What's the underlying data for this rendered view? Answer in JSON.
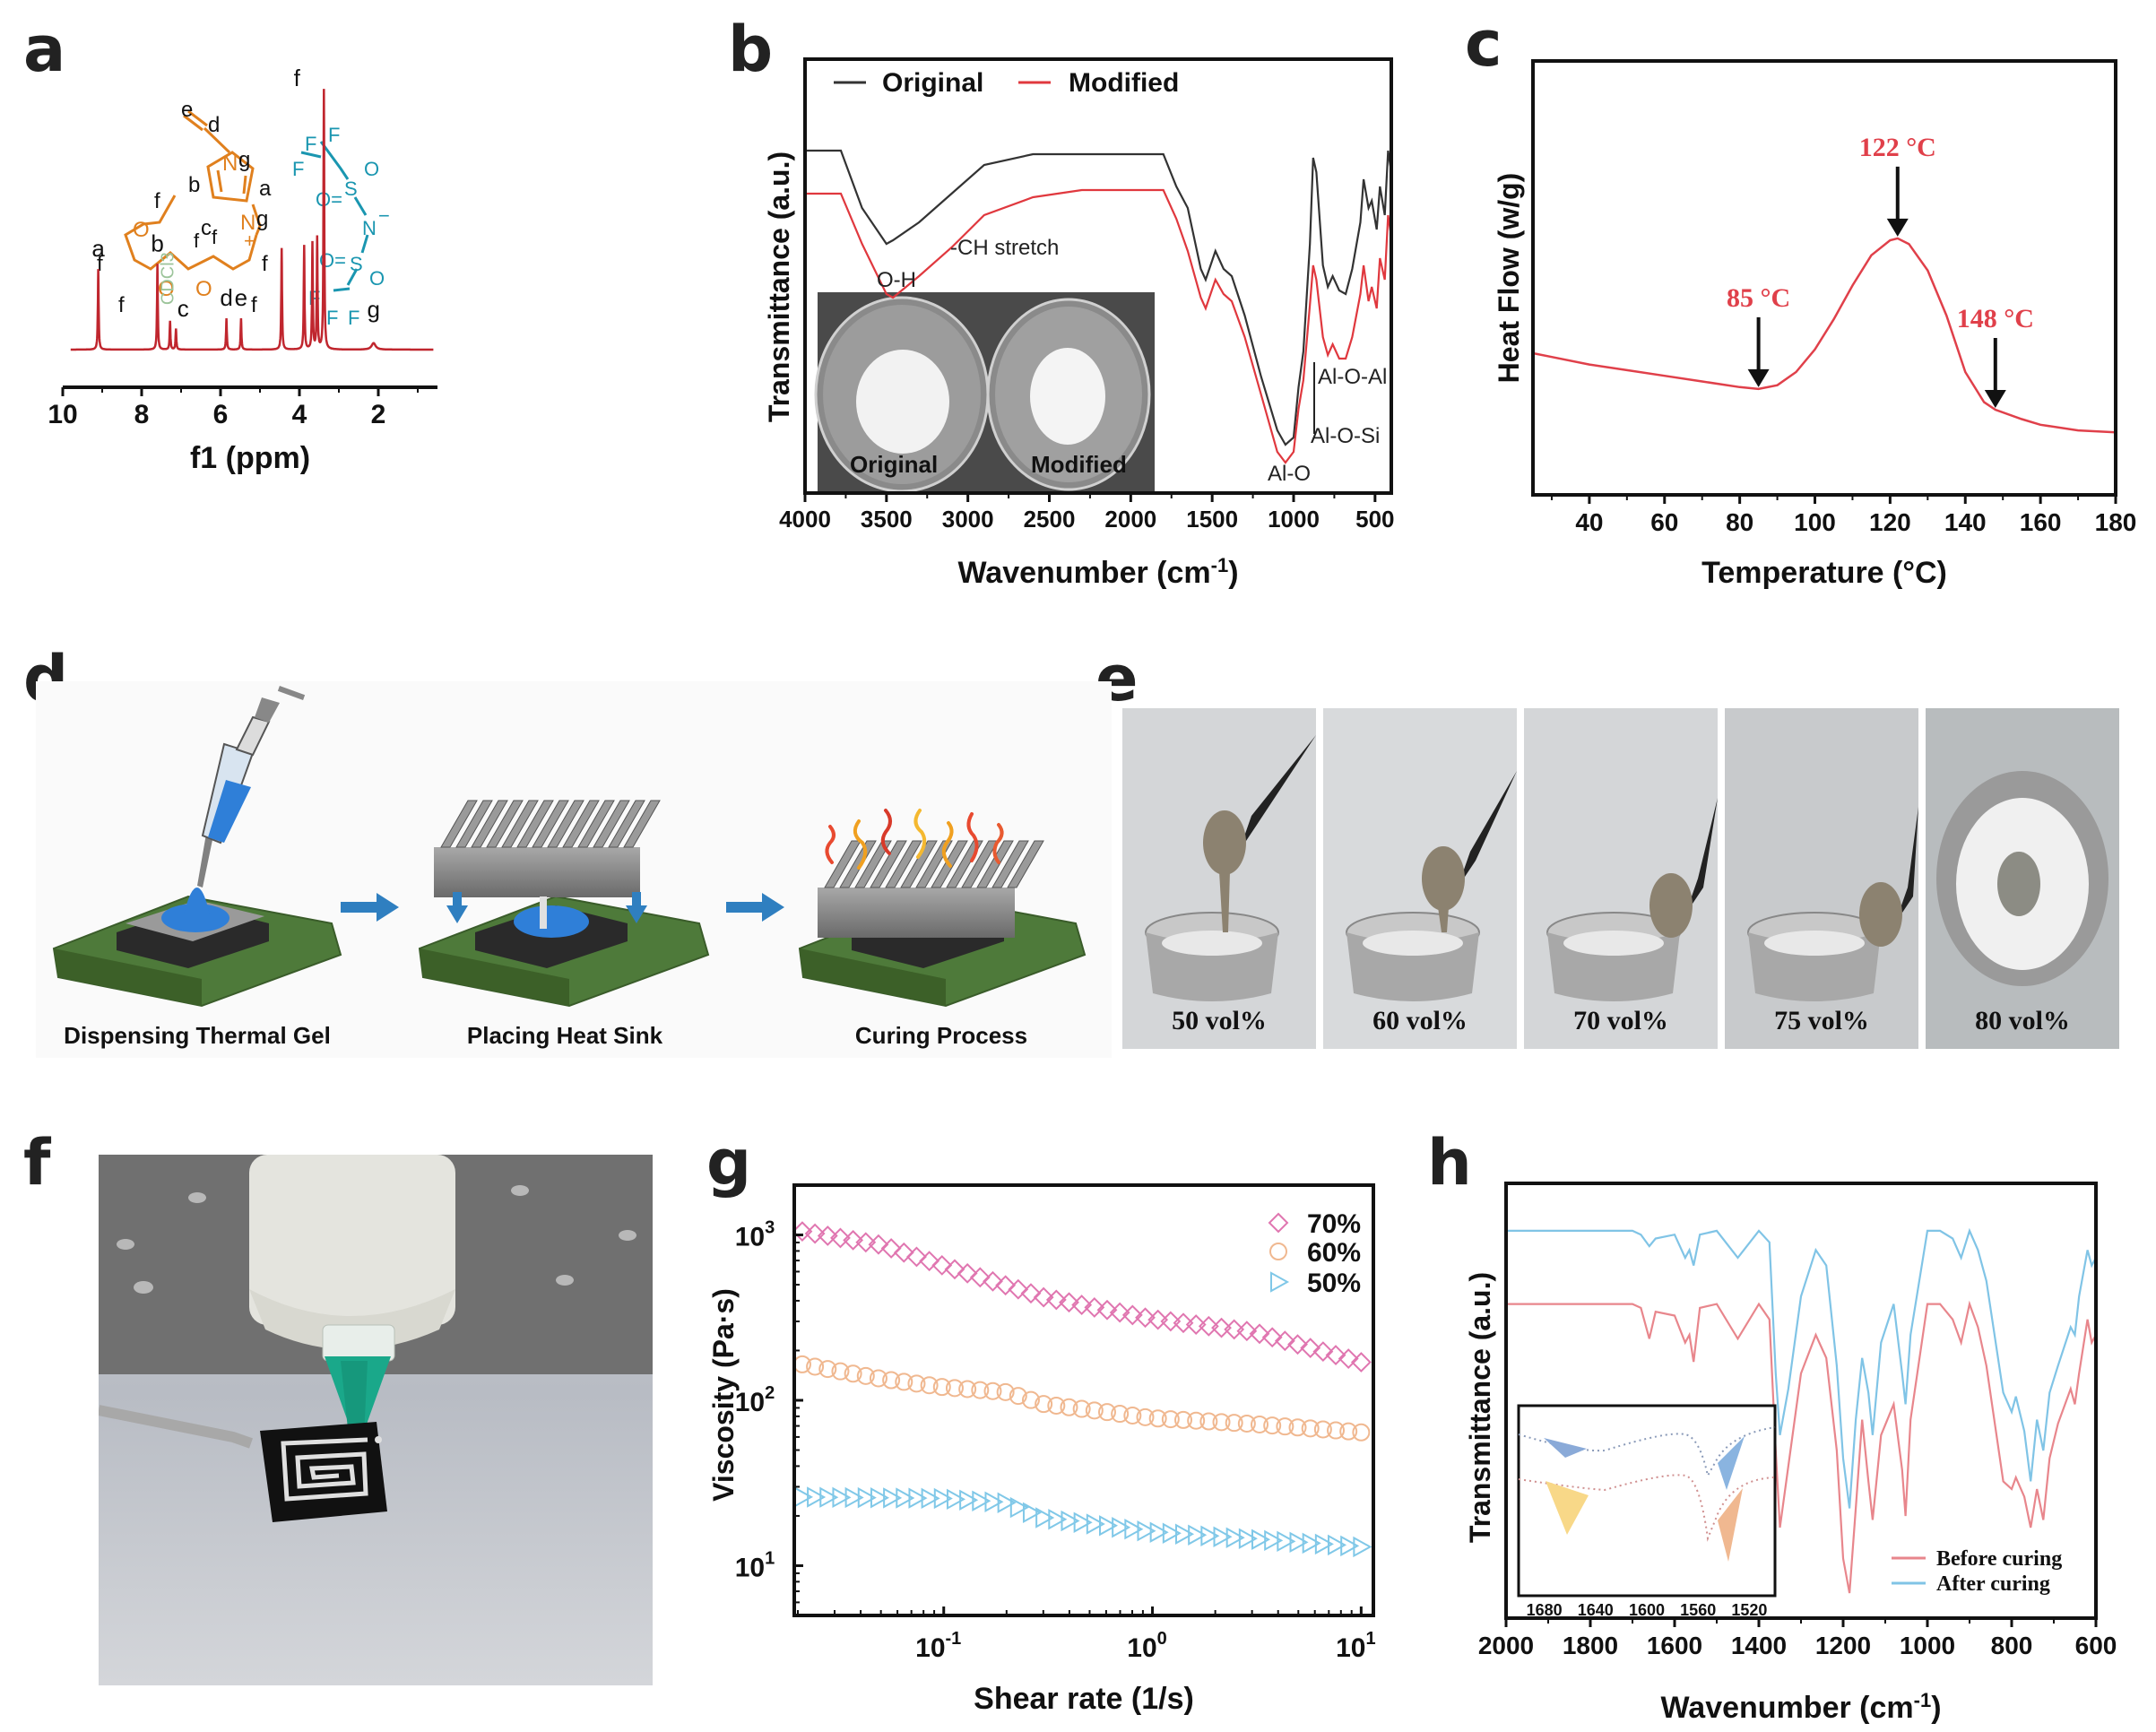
{
  "panels": {
    "a": "a",
    "b": "b",
    "c": "c",
    "d": "d",
    "e": "e",
    "f": "f",
    "g": "g",
    "h": "h"
  },
  "chart_data": [
    {
      "id": "a",
      "type": "line",
      "title": "",
      "xlabel": "f1 (ppm)",
      "ylabel": "",
      "xlim": [
        10,
        0.5
      ],
      "x_reversed": true,
      "xticks": [
        "10",
        "8",
        "6",
        "4",
        "2"
      ],
      "xtick_values": [
        10,
        8,
        6,
        4,
        2
      ],
      "color": "#c0262e",
      "peaks": [
        {
          "ppm": 9.1,
          "height": 0.31,
          "label": "a"
        },
        {
          "ppm": 7.6,
          "height": 0.33,
          "label": "b"
        },
        {
          "ppm": 7.28,
          "height": 0.11,
          "label": "CDCl3",
          "label_color": "#9cc49a"
        },
        {
          "ppm": 7.13,
          "height": 0.08,
          "label": "c"
        },
        {
          "ppm": 5.85,
          "height": 0.12,
          "label": "d"
        },
        {
          "ppm": 5.48,
          "height": 0.12,
          "label": "e"
        },
        {
          "ppm": 4.45,
          "height": 0.39,
          "label": ""
        },
        {
          "ppm": 3.88,
          "height": 0.4,
          "label": ""
        },
        {
          "ppm": 3.67,
          "height": 0.41,
          "label": ""
        },
        {
          "ppm": 3.55,
          "height": 0.43,
          "label": ""
        },
        {
          "ppm": 3.38,
          "height": 1.0,
          "label": "f"
        },
        {
          "ppm": 2.12,
          "height": 0.025,
          "label": "g"
        }
      ],
      "structure": {
        "cation_color": "#e0801e",
        "anion_color": "#1a96b0",
        "cation_atoms": [
          "N",
          "N",
          "O",
          "O",
          "O"
        ],
        "cation_charge": "+",
        "proton_labels": [
          "a",
          "b",
          "c",
          "d",
          "e",
          "f",
          "g"
        ],
        "anion_atoms": [
          "F",
          "S",
          "O",
          "N",
          "S",
          "O"
        ],
        "anion_charge": "−"
      }
    },
    {
      "id": "b",
      "type": "line",
      "title": "",
      "xlabel": "Wavenumber (cm",
      "xlabel_sup": "-1",
      "xlabel_tail": ")",
      "ylabel": "Transmittance (a.u.)",
      "xlim": [
        4000,
        400
      ],
      "x_reversed": true,
      "xticks": [
        "4000",
        "3500",
        "3000",
        "2500",
        "2000",
        "1500",
        "1000",
        "500"
      ],
      "xtick_values": [
        4000,
        3500,
        3000,
        2500,
        2000,
        1500,
        1000,
        500
      ],
      "legend": {
        "position": "top-left",
        "entries": [
          "Original",
          "Modified"
        ]
      },
      "series": [
        {
          "name": "Original",
          "color": "#333333",
          "x": [
            4000,
            3780,
            3650,
            3500,
            3460,
            3300,
            3100,
            2900,
            2600,
            2300,
            2000,
            1800,
            1720,
            1650,
            1570,
            1540,
            1480,
            1430,
            1380,
            1300,
            1200,
            1100,
            1050,
            1000,
            970,
            940,
            900,
            880,
            860,
            820,
            790,
            760,
            720,
            680,
            640,
            590,
            570,
            540,
            520,
            490,
            470,
            440,
            420,
            400
          ],
          "y": [
            0.88,
            0.88,
            0.72,
            0.62,
            0.63,
            0.68,
            0.76,
            0.84,
            0.87,
            0.87,
            0.87,
            0.87,
            0.78,
            0.72,
            0.55,
            0.52,
            0.6,
            0.55,
            0.53,
            0.42,
            0.25,
            0.1,
            0.06,
            0.08,
            0.22,
            0.32,
            0.62,
            0.86,
            0.82,
            0.56,
            0.5,
            0.53,
            0.49,
            0.48,
            0.55,
            0.68,
            0.8,
            0.72,
            0.74,
            0.66,
            0.78,
            0.7,
            0.88,
            0.82
          ]
        },
        {
          "name": "Modified",
          "color": "#e0383e",
          "x": [
            4000,
            3780,
            3650,
            3500,
            3460,
            3300,
            3100,
            2900,
            2600,
            2300,
            2000,
            1800,
            1720,
            1650,
            1570,
            1540,
            1480,
            1430,
            1380,
            1300,
            1200,
            1100,
            1050,
            1000,
            970,
            940,
            900,
            880,
            860,
            820,
            790,
            760,
            720,
            680,
            640,
            590,
            570,
            540,
            520,
            490,
            470,
            440,
            420,
            400
          ],
          "y": [
            0.76,
            0.76,
            0.62,
            0.48,
            0.47,
            0.53,
            0.61,
            0.7,
            0.75,
            0.77,
            0.77,
            0.77,
            0.69,
            0.6,
            0.47,
            0.44,
            0.52,
            0.48,
            0.46,
            0.36,
            0.2,
            0.04,
            0.01,
            0.04,
            0.16,
            0.24,
            0.45,
            0.56,
            0.52,
            0.36,
            0.31,
            0.34,
            0.3,
            0.3,
            0.36,
            0.48,
            0.56,
            0.46,
            0.5,
            0.44,
            0.58,
            0.52,
            0.7,
            0.64
          ]
        }
      ],
      "annotations": [
        "O-H",
        "-CH stretch",
        "Al-O",
        "Al-O-Si",
        "Al-O-Al"
      ],
      "inset_labels": [
        "Original",
        "Modified"
      ]
    },
    {
      "id": "c",
      "type": "line",
      "title": "",
      "xlabel": "Temperature (°C)",
      "ylabel": "Heat Flow (w/g)",
      "xlim": [
        25,
        180
      ],
      "xticks": [
        "40",
        "60",
        "80",
        "100",
        "120",
        "140",
        "160",
        "180"
      ],
      "xtick_values": [
        40,
        60,
        80,
        100,
        120,
        140,
        160,
        180
      ],
      "color": "#e0404a",
      "x": [
        25,
        30,
        40,
        50,
        60,
        70,
        80,
        85,
        90,
        95,
        100,
        105,
        110,
        115,
        120,
        122,
        125,
        130,
        135,
        140,
        145,
        148,
        155,
        160,
        170,
        180
      ],
      "y": [
        0.3,
        0.29,
        0.27,
        0.255,
        0.24,
        0.225,
        0.21,
        0.205,
        0.215,
        0.25,
        0.31,
        0.39,
        0.48,
        0.56,
        0.6,
        0.605,
        0.59,
        0.52,
        0.4,
        0.25,
        0.17,
        0.15,
        0.125,
        0.11,
        0.095,
        0.09
      ],
      "annotations": [
        {
          "x": 85,
          "label": "85 °C"
        },
        {
          "x": 122,
          "label": "122 °C"
        },
        {
          "x": 148,
          "label": "148 °C"
        }
      ]
    },
    {
      "id": "g",
      "type": "scatter",
      "title": "",
      "xlabel": "Shear rate (1/s)",
      "ylabel": "Viscosity (Pa·s)",
      "xscale": "log",
      "yscale": "log",
      "xlim": [
        0.02,
        11
      ],
      "ylim": [
        5,
        2000
      ],
      "xticks": [
        "10",
        "10",
        "10"
      ],
      "xtick_exps": [
        "-1",
        "0",
        "1"
      ],
      "xtick_values": [
        0.1,
        1,
        10
      ],
      "yticks": [
        "10",
        "10",
        "10"
      ],
      "ytick_exps": [
        "1",
        "2",
        "3"
      ],
      "ytick_values": [
        10,
        100,
        1000
      ],
      "legend": {
        "position": "top-right",
        "entries": [
          "70%",
          "60%",
          "50%"
        ]
      },
      "series": [
        {
          "name": "70%",
          "marker": "diamond",
          "color": "#e076b0",
          "x_start": 0.021,
          "x_end": 10,
          "n": 45,
          "anchors": [
            [
              0.021,
              1050
            ],
            [
              0.05,
              870
            ],
            [
              0.1,
              650
            ],
            [
              0.3,
              420
            ],
            [
              1,
              310
            ],
            [
              3,
              260
            ],
            [
              10,
              170
            ]
          ]
        },
        {
          "name": "60%",
          "marker": "circle",
          "color": "#f0b890",
          "x_start": 0.021,
          "x_end": 10,
          "n": 45,
          "anchors": [
            [
              0.021,
              165
            ],
            [
              0.05,
              135
            ],
            [
              0.1,
              120
            ],
            [
              0.2,
              112
            ],
            [
              0.3,
              95
            ],
            [
              0.6,
              85
            ],
            [
              1,
              78
            ],
            [
              3,
              72
            ],
            [
              10,
              64
            ]
          ]
        },
        {
          "name": "50%",
          "marker": "triangle-right",
          "color": "#80c8e8",
          "x_start": 0.021,
          "x_end": 10,
          "n": 45,
          "anchors": [
            [
              0.021,
              26
            ],
            [
              0.1,
              25.5
            ],
            [
              0.2,
              24
            ],
            [
              0.3,
              19.5
            ],
            [
              0.6,
              17.5
            ],
            [
              1,
              16
            ],
            [
              3,
              14.5
            ],
            [
              10,
              13
            ]
          ]
        }
      ]
    },
    {
      "id": "h",
      "type": "line",
      "title": "",
      "xlabel": "Wavenumber (cm",
      "xlabel_sup": "-1",
      "xlabel_tail": ")",
      "ylabel": "Transmittance (a.u.)",
      "xlim": [
        2000,
        600
      ],
      "x_reversed": true,
      "xticks": [
        "2000",
        "1800",
        "1600",
        "1400",
        "1200",
        "1000",
        "800",
        "600"
      ],
      "xtick_values": [
        2000,
        1800,
        1600,
        1400,
        1200,
        1000,
        800,
        600
      ],
      "legend": {
        "position": "bottom-right",
        "entries": [
          "Before curing",
          "After curing"
        ]
      },
      "series": [
        {
          "name": "Before curing",
          "color": "#e8868c",
          "x": [
            2000,
            1900,
            1800,
            1700,
            1680,
            1660,
            1645,
            1600,
            1575,
            1565,
            1555,
            1540,
            1500,
            1450,
            1400,
            1375,
            1360,
            1350,
            1330,
            1300,
            1265,
            1240,
            1215,
            1200,
            1185,
            1170,
            1155,
            1140,
            1130,
            1110,
            1080,
            1060,
            1052,
            1040,
            1000,
            970,
            940,
            920,
            900,
            880,
            860,
            820,
            800,
            790,
            770,
            755,
            740,
            725,
            710,
            690,
            660,
            650,
            640,
            620,
            610,
            600
          ],
          "y": [
            0.78,
            0.78,
            0.78,
            0.78,
            0.77,
            0.69,
            0.76,
            0.75,
            0.68,
            0.7,
            0.63,
            0.77,
            0.78,
            0.69,
            0.78,
            0.74,
            0.4,
            0.2,
            0.36,
            0.6,
            0.7,
            0.64,
            0.4,
            0.12,
            0.03,
            0.25,
            0.48,
            0.32,
            0.22,
            0.44,
            0.52,
            0.35,
            0.23,
            0.48,
            0.78,
            0.78,
            0.74,
            0.68,
            0.78,
            0.72,
            0.62,
            0.32,
            0.3,
            0.33,
            0.28,
            0.2,
            0.3,
            0.22,
            0.38,
            0.47,
            0.56,
            0.52,
            0.6,
            0.74,
            0.68,
            0.7
          ]
        },
        {
          "name": "After curing",
          "color": "#80c4e6",
          "x": [
            2000,
            1900,
            1800,
            1700,
            1680,
            1660,
            1645,
            1600,
            1575,
            1565,
            1555,
            1540,
            1500,
            1450,
            1400,
            1375,
            1360,
            1350,
            1330,
            1300,
            1265,
            1240,
            1215,
            1200,
            1185,
            1170,
            1155,
            1140,
            1130,
            1110,
            1080,
            1060,
            1052,
            1040,
            1000,
            970,
            940,
            920,
            900,
            880,
            860,
            820,
            800,
            790,
            770,
            755,
            740,
            725,
            710,
            690,
            660,
            650,
            640,
            620,
            610,
            600
          ],
          "y": [
            0.97,
            0.97,
            0.97,
            0.97,
            0.96,
            0.93,
            0.95,
            0.96,
            0.9,
            0.92,
            0.88,
            0.96,
            0.97,
            0.9,
            0.97,
            0.94,
            0.6,
            0.44,
            0.56,
            0.8,
            0.92,
            0.88,
            0.62,
            0.38,
            0.25,
            0.48,
            0.64,
            0.55,
            0.44,
            0.68,
            0.78,
            0.6,
            0.52,
            0.7,
            0.97,
            0.97,
            0.95,
            0.9,
            0.97,
            0.92,
            0.84,
            0.55,
            0.5,
            0.54,
            0.45,
            0.32,
            0.48,
            0.4,
            0.55,
            0.62,
            0.72,
            0.7,
            0.8,
            0.92,
            0.88,
            0.9
          ]
        }
      ],
      "inset": {
        "xlim": [
          1700,
          1500
        ],
        "xticks": [
          "1680",
          "1640",
          "1600",
          "1560",
          "1520"
        ],
        "xtick_values": [
          1680,
          1640,
          1600,
          1560,
          1520
        ],
        "fill_colors": [
          "#8aaad8",
          "#8ab4e0",
          "#f8d888",
          "#f0b890"
        ]
      }
    }
  ],
  "panel_d": {
    "steps": [
      "Dispensing Thermal Gel",
      "Placing Heat Sink",
      "Curing Process"
    ],
    "colors": {
      "gel": "#2f7fd8",
      "arrow": "#2f7fc0",
      "board": "#4e7a3a",
      "chip": "#9a9a9a",
      "sink": "#8c8c8c"
    }
  },
  "panel_e": {
    "labels": [
      "50 vol%",
      "60 vol%",
      "70 vol%",
      "75 vol%",
      "80 vol%"
    ]
  },
  "panel_f": {
    "description": "dispensing nozzle printing square spiral pattern",
    "colors": {
      "nozzle": "#1aa88a",
      "barrel": "#e4e4de",
      "tile": "#111111"
    }
  }
}
